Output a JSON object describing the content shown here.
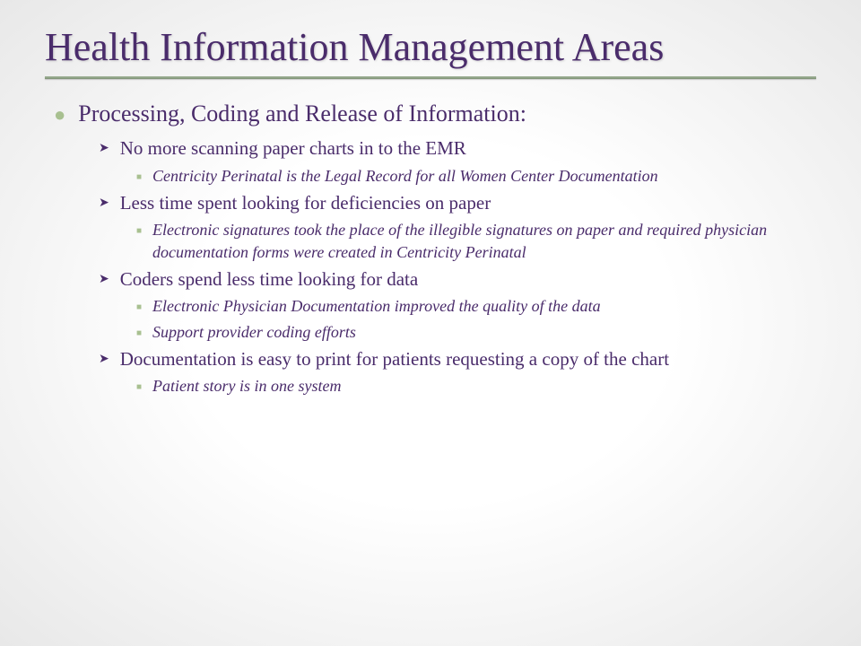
{
  "title": "Health Information Management Areas",
  "colors": {
    "text": "#4a2c6b",
    "accent": "#a8c090",
    "underline": "#7a9070"
  },
  "heading": "Processing, Coding and Release of Information:",
  "items": [
    {
      "text": "No more scanning paper charts in to  the EMR",
      "sub": [
        "Centricity Perinatal is the Legal Record for all Women Center Documentation"
      ]
    },
    {
      "text": "Less time spent looking for deficiencies on paper",
      "sub": [
        "Electronic signatures took the place of the illegible signatures on paper and required physician documentation forms were created in Centricity Perinatal"
      ]
    },
    {
      "text": "Coders spend less time looking for data",
      "sub": [
        "Electronic Physician Documentation improved the quality of the data",
        "Support provider coding efforts"
      ]
    },
    {
      "text": "Documentation is easy to print for patients requesting a copy of the chart",
      "sub": [
        "Patient story is in one system"
      ]
    }
  ]
}
